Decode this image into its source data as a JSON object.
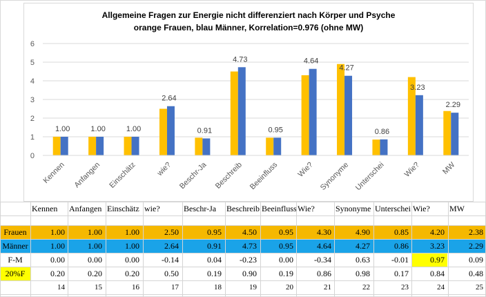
{
  "chart_data": {
    "type": "bar",
    "title_line1": "Allgemeine Fragen zur Energie nicht differenziert nach Körper und  Psyche",
    "title_line2": "orange Frauen, blau Männer, Korrelation=0.976 (ohne MW)",
    "categories": [
      "Kennen",
      "Anfangen",
      "Einschätz",
      "wie?",
      "Beschr-Ja",
      "Beschreib",
      "Beeinfluss",
      "Wie?",
      "Synonyme",
      "Unterschei",
      "Wie?",
      "MW"
    ],
    "series": [
      {
        "name": "Frauen",
        "color": "#ffc000",
        "values": [
          1.0,
          1.0,
          1.0,
          2.5,
          0.95,
          4.5,
          0.95,
          4.3,
          4.9,
          0.85,
          4.2,
          2.38
        ]
      },
      {
        "name": "Männer",
        "color": "#4472c4",
        "values": [
          1.0,
          1.0,
          1.0,
          2.64,
          0.91,
          4.73,
          0.95,
          4.64,
          4.27,
          0.86,
          3.23,
          2.29
        ]
      }
    ],
    "data_labels": [
      "1.00",
      "1.00",
      "1.00",
      "2.64",
      "0.91",
      "4.73",
      "0.95",
      "4.64",
      "4.27",
      "0.86",
      "3.23",
      "2.29"
    ],
    "ylim": [
      0,
      6
    ],
    "yticks": [
      "0",
      "1",
      "2",
      "3",
      "4",
      "5",
      "6"
    ],
    "grid": true,
    "legend": "none"
  },
  "table": {
    "headers": [
      "Kennen",
      "Anfangen",
      "Einschätz",
      "wie?",
      "Beschr-Ja",
      "Beschreib",
      "Beeinfluss",
      "Wie?",
      "Synonyme",
      "Unterschei",
      "Wie?",
      "MW"
    ],
    "rows": [
      {
        "label": "Frauen",
        "values": [
          "1.00",
          "1.00",
          "1.00",
          "2.50",
          "0.95",
          "4.50",
          "0.95",
          "4.30",
          "4.90",
          "0.85",
          "4.20",
          "2.38"
        ]
      },
      {
        "label": "Männer",
        "values": [
          "1.00",
          "1.00",
          "1.00",
          "2.64",
          "0.91",
          "4.73",
          "0.95",
          "4.64",
          "4.27",
          "0.86",
          "3.23",
          "2.29"
        ]
      },
      {
        "label": "F-M",
        "values": [
          "0.00",
          "0.00",
          "0.00",
          "-0.14",
          "0.04",
          "-0.23",
          "0.00",
          "-0.34",
          "0.63",
          "-0.01",
          "0.97",
          "0.09"
        ]
      },
      {
        "label": "20%F",
        "values": [
          "0.20",
          "0.20",
          "0.20",
          "0.50",
          "0.19",
          "0.90",
          "0.19",
          "0.86",
          "0.98",
          "0.17",
          "0.84",
          "0.48"
        ]
      }
    ],
    "index_row": [
      "14",
      "15",
      "16",
      "17",
      "18",
      "19",
      "20",
      "21",
      "22",
      "23",
      "24",
      "25"
    ],
    "colors": {
      "frauen_row": "#f5b800",
      "maenner_row": "#1aa3e8",
      "highlight": "#ffff00"
    }
  }
}
